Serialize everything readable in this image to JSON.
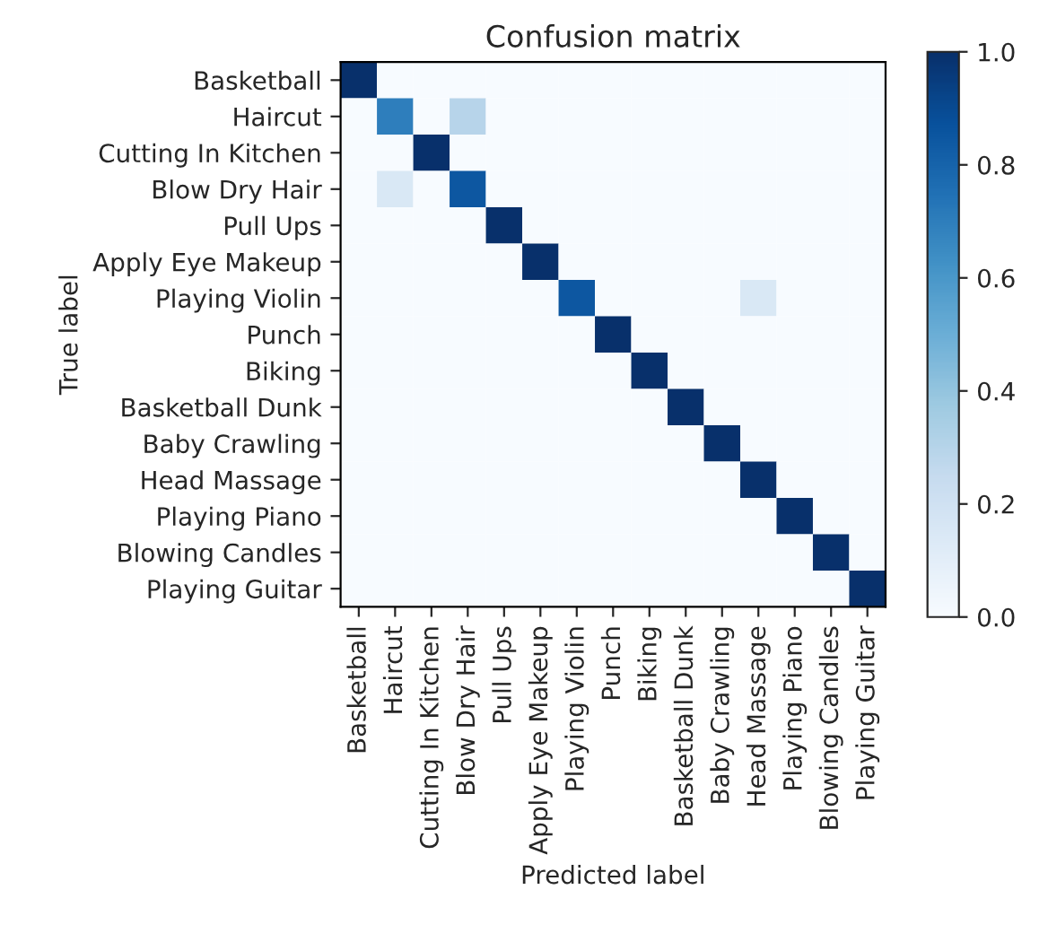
{
  "chart_data": {
    "type": "heatmap",
    "title": "Confusion matrix",
    "xlabel": "Predicted label",
    "ylabel": "True label",
    "categories": [
      "Basketball",
      "Haircut",
      "Cutting In Kitchen",
      "Blow Dry Hair",
      "Pull Ups",
      "Apply Eye Makeup",
      "Playing Violin",
      "Punch",
      "Biking",
      "Basketball Dunk",
      "Baby Crawling",
      "Head Massage",
      "Playing Piano",
      "Blowing Candles",
      "Playing Guitar"
    ],
    "y_categories": [
      "Basketball",
      "Haircut",
      "Cutting In Kitchen",
      "Blow Dry Hair",
      "Pull Ups",
      "Apply Eye Makeup",
      "Playing Violin",
      "Punch",
      "Biking",
      "Basketball Dunk",
      "Baby Crawling",
      "Head Massage",
      "Playing Piano",
      "Blowing Candles",
      "Playing Guitar"
    ],
    "cells": [
      [
        1,
        0,
        0,
        0,
        0,
        0,
        0,
        0,
        0,
        0,
        0,
        0,
        0,
        0,
        0
      ],
      [
        0,
        0.7,
        0,
        0.3,
        0,
        0,
        0,
        0,
        0,
        0,
        0,
        0,
        0,
        0,
        0
      ],
      [
        0,
        0,
        1,
        0,
        0,
        0,
        0,
        0,
        0,
        0,
        0,
        0,
        0,
        0,
        0
      ],
      [
        0,
        0.15,
        0,
        0.85,
        0,
        0,
        0,
        0,
        0,
        0,
        0,
        0,
        0,
        0,
        0
      ],
      [
        0,
        0,
        0,
        0,
        1,
        0,
        0,
        0,
        0,
        0,
        0,
        0,
        0,
        0,
        0
      ],
      [
        0,
        0,
        0,
        0,
        0,
        1,
        0,
        0,
        0,
        0,
        0,
        0,
        0,
        0,
        0
      ],
      [
        0,
        0,
        0,
        0,
        0,
        0,
        0.85,
        0,
        0,
        0,
        0,
        0.15,
        0,
        0,
        0
      ],
      [
        0,
        0,
        0,
        0,
        0,
        0,
        0,
        1,
        0,
        0,
        0,
        0,
        0,
        0,
        0
      ],
      [
        0,
        0,
        0,
        0,
        0,
        0,
        0,
        0,
        1,
        0,
        0,
        0,
        0,
        0,
        0
      ],
      [
        0,
        0,
        0,
        0,
        0,
        0,
        0,
        0,
        0,
        1,
        0,
        0,
        0,
        0,
        0
      ],
      [
        0,
        0,
        0,
        0,
        0,
        0,
        0,
        0,
        0,
        0,
        1,
        0,
        0,
        0,
        0
      ],
      [
        0,
        0,
        0,
        0,
        0,
        0,
        0,
        0,
        0,
        0,
        0,
        1,
        0,
        0,
        0
      ],
      [
        0,
        0,
        0,
        0,
        0,
        0,
        0,
        0,
        0,
        0,
        0,
        0,
        1,
        0,
        0
      ],
      [
        0,
        0,
        0,
        0,
        0,
        0,
        0,
        0,
        0,
        0,
        0,
        0,
        0,
        1,
        0
      ],
      [
        0,
        0,
        0,
        0,
        0,
        0,
        0,
        0,
        0,
        0,
        0,
        0,
        0,
        0,
        1
      ]
    ],
    "clim": [
      0,
      1
    ],
    "cticks": [
      {
        "value": 0,
        "label": "0.0"
      },
      {
        "value": 0.2,
        "label": "0.2"
      },
      {
        "value": 0.4,
        "label": "0.4"
      },
      {
        "value": 0.6,
        "label": "0.6"
      },
      {
        "value": 0.8,
        "label": "0.8"
      },
      {
        "value": 1,
        "label": "1.0"
      }
    ]
  }
}
